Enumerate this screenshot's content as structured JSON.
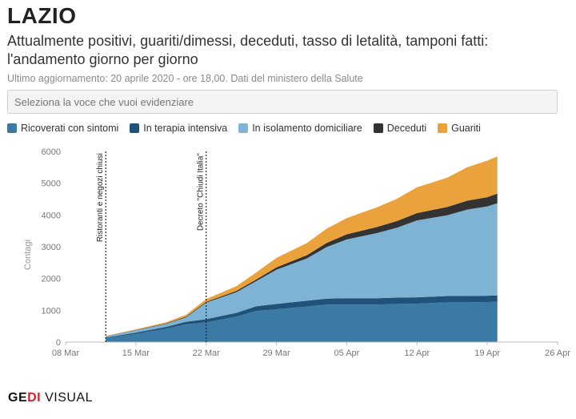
{
  "header": {
    "title": "LAZIO",
    "subtitle": "Attualmente positivi, guariti/dimessi, deceduti, tasso di letalità, tamponi fatti: l'andamento giorno per giorno",
    "updated": "Ultimo aggiornamento: 20 aprile 2020 - ore 18,00. Dati del ministero della Salute"
  },
  "selector": {
    "placeholder": "Seleziona la voce che vuoi evidenziare"
  },
  "legend": [
    {
      "label": "Ricoverati con sintomi",
      "color": "#3a7aa5"
    },
    {
      "label": "In terapia intensiva",
      "color": "#21527a"
    },
    {
      "label": "In isolamento domiciliare",
      "color": "#7fb3d3"
    },
    {
      "label": "Deceduti",
      "color": "#333333"
    },
    {
      "label": "Guariti",
      "color": "#eaa23c"
    }
  ],
  "footer": {
    "brand_part1": "GE",
    "brand_part2": "DI",
    "brand_part3": " VISUAL"
  },
  "chart_data": {
    "type": "area",
    "stacked": true,
    "ylabel": "Contagi",
    "ylim": [
      0,
      6000
    ],
    "yticks": [
      0,
      1000,
      2000,
      3000,
      4000,
      5000,
      6000
    ],
    "xlim": [
      "2020-03-08",
      "2020-04-26"
    ],
    "xticks": [
      "08 Mar",
      "15 Mar",
      "22 Mar",
      "29 Mar",
      "05 Apr",
      "12 Apr",
      "19 Apr",
      "26 Apr"
    ],
    "grid": false,
    "annotations": [
      {
        "date": "2020-03-12",
        "label": "Ristoranti e negozi chiusi"
      },
      {
        "date": "2020-03-22",
        "label": "Decreto \"Chiudi Italia\""
      }
    ],
    "dates": [
      "2020-03-12",
      "2020-03-15",
      "2020-03-18",
      "2020-03-20",
      "2020-03-22",
      "2020-03-25",
      "2020-03-27",
      "2020-03-29",
      "2020-04-01",
      "2020-04-03",
      "2020-04-05",
      "2020-04-08",
      "2020-04-10",
      "2020-04-12",
      "2020-04-15",
      "2020-04-17",
      "2020-04-19",
      "2020-04-20"
    ],
    "series": [
      {
        "name": "Ricoverati con sintomi",
        "color": "#3a7aa5",
        "values": [
          120,
          260,
          420,
          560,
          620,
          800,
          980,
          1030,
          1120,
          1180,
          1180,
          1180,
          1200,
          1210,
          1250,
          1250,
          1260,
          1270
        ]
      },
      {
        "name": "In terapia intensiva",
        "color": "#21527a",
        "values": [
          20,
          40,
          60,
          80,
          100,
          120,
          150,
          170,
          180,
          190,
          200,
          200,
          200,
          200,
          200,
          200,
          200,
          200
        ]
      },
      {
        "name": "In isolamento domiciliare",
        "color": "#7fb3d3",
        "values": [
          40,
          70,
          90,
          140,
          520,
          650,
          790,
          1080,
          1330,
          1620,
          1850,
          2050,
          2200,
          2420,
          2540,
          2720,
          2810,
          2900
        ]
      },
      {
        "name": "Deceduti",
        "color": "#333333",
        "values": [
          5,
          10,
          15,
          20,
          25,
          40,
          55,
          70,
          100,
          130,
          160,
          190,
          210,
          230,
          260,
          280,
          290,
          300
        ]
      },
      {
        "name": "Guariti",
        "color": "#eaa23c",
        "values": [
          10,
          20,
          40,
          60,
          90,
          150,
          220,
          300,
          380,
          450,
          510,
          620,
          700,
          810,
          920,
          1050,
          1150,
          1170
        ]
      }
    ]
  }
}
